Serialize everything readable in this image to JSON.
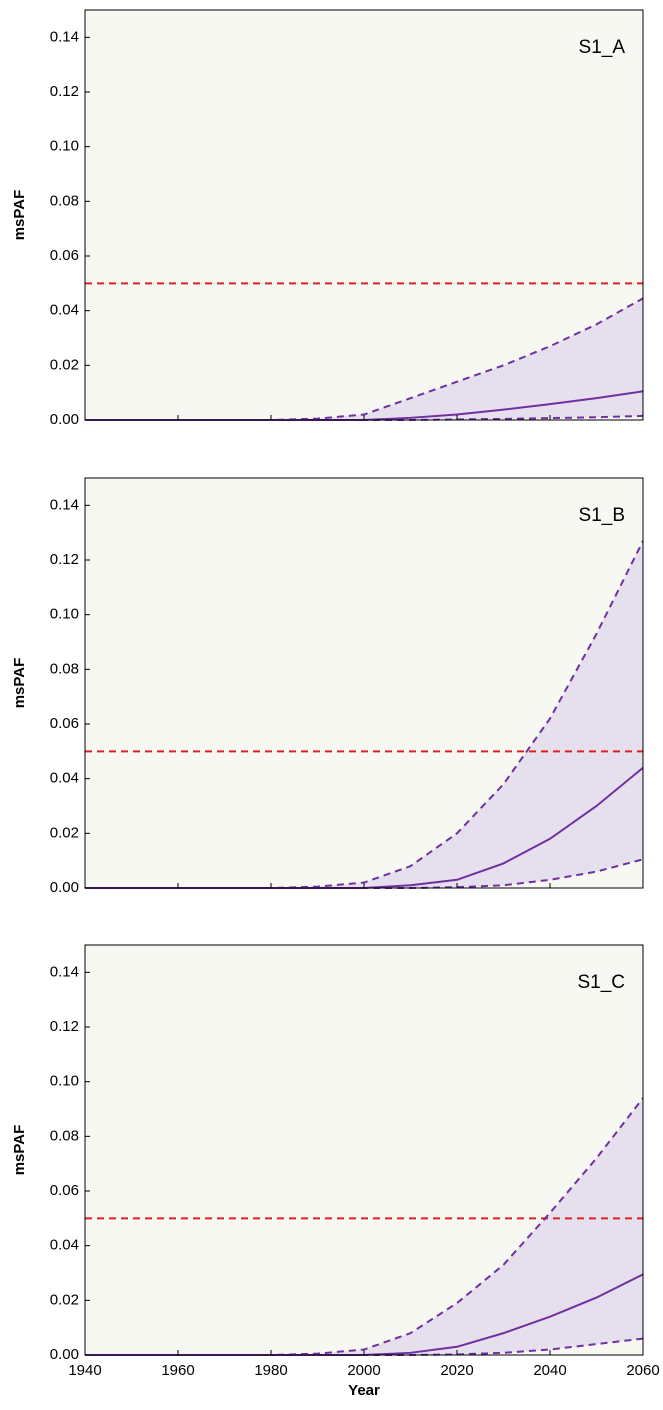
{
  "chart_data": [
    {
      "type": "line",
      "annotation": "S1_A",
      "ylabel": "msPAF",
      "x": [
        1940,
        1950,
        1960,
        1970,
        1980,
        1990,
        2000,
        2010,
        2020,
        2030,
        2040,
        2050,
        2060
      ],
      "series": [
        {
          "color": "#7030a0",
          "dash": false,
          "values": [
            0,
            0,
            0,
            0,
            0,
            0,
            0,
            0.0008,
            0.002,
            0.0038,
            0.0058,
            0.008,
            0.0105
          ]
        },
        {
          "color": "#7030a0",
          "dash": true,
          "values": [
            0,
            0,
            0,
            0,
            0,
            0.0005,
            0.002,
            0.008,
            0.014,
            0.02,
            0.027,
            0.035,
            0.0445
          ]
        },
        {
          "color": "#7030a0",
          "dash": true,
          "values": [
            0,
            0,
            0,
            0,
            0,
            0,
            0,
            0,
            0.0002,
            0.0004,
            0.0007,
            0.001,
            0.0015
          ]
        }
      ],
      "band_color": "#e6dfee",
      "background": "#f8f8f3",
      "hlines": [
        {
          "value": 0.05,
          "color": "#e02020"
        }
      ],
      "xlim": [
        1940,
        2060
      ],
      "xticks": [
        1940,
        1960,
        1980,
        2000,
        2020,
        2040,
        2060
      ],
      "ylim": [
        0,
        0.15
      ],
      "yticks": [
        {
          "value": 0,
          "label": "0.00"
        },
        0.02,
        0.04,
        0.06,
        0.08,
        {
          "value": 0.1,
          "label": "0.10"
        },
        0.12,
        0.14
      ]
    },
    {
      "type": "line",
      "annotation": "S1_B",
      "ylabel": "msPAF",
      "x": [
        1940,
        1950,
        1960,
        1970,
        1980,
        1990,
        2000,
        2010,
        2020,
        2030,
        2040,
        2050,
        2060
      ],
      "series": [
        {
          "color": "#7030a0",
          "dash": false,
          "values": [
            0,
            0,
            0,
            0,
            0,
            0,
            0,
            0.001,
            0.003,
            0.009,
            0.018,
            0.03,
            0.044
          ]
        },
        {
          "color": "#7030a0",
          "dash": true,
          "values": [
            0,
            0,
            0,
            0,
            0,
            0.0005,
            0.002,
            0.008,
            0.02,
            0.038,
            0.062,
            0.093,
            0.127
          ]
        },
        {
          "color": "#7030a0",
          "dash": true,
          "values": [
            0,
            0,
            0,
            0,
            0,
            0,
            0,
            0,
            0.0003,
            0.001,
            0.003,
            0.006,
            0.0105
          ]
        }
      ],
      "band_color": "#e6dfee",
      "background": "#f8f8f3",
      "hlines": [
        {
          "value": 0.05,
          "color": "#e02020"
        }
      ],
      "xlim": [
        1940,
        2060
      ],
      "xticks": [
        1940,
        1960,
        1980,
        2000,
        2020,
        2040,
        2060
      ],
      "ylim": [
        0,
        0.15
      ],
      "yticks": [
        {
          "value": 0,
          "label": "0.00"
        },
        0.02,
        0.04,
        0.06,
        0.08,
        {
          "value": 0.1,
          "label": "0.10"
        },
        0.12,
        0.14
      ]
    },
    {
      "type": "line",
      "annotation": "S1_C",
      "ylabel": "msPAF",
      "xlabel": "Year",
      "x": [
        1940,
        1950,
        1960,
        1970,
        1980,
        1990,
        2000,
        2010,
        2020,
        2030,
        2040,
        2050,
        2060
      ],
      "series": [
        {
          "color": "#7030a0",
          "dash": false,
          "values": [
            0,
            0,
            0,
            0,
            0,
            0,
            0,
            0.0008,
            0.003,
            0.008,
            0.014,
            0.021,
            0.0295
          ]
        },
        {
          "color": "#7030a0",
          "dash": true,
          "values": [
            0,
            0,
            0,
            0,
            0,
            0.0005,
            0.002,
            0.008,
            0.019,
            0.033,
            0.052,
            0.072,
            0.094
          ]
        },
        {
          "color": "#7030a0",
          "dash": true,
          "values": [
            0,
            0,
            0,
            0,
            0,
            0,
            0,
            0,
            0.0002,
            0.0008,
            0.002,
            0.004,
            0.006
          ]
        }
      ],
      "band_color": "#e6dfee",
      "background": "#f8f8f3",
      "hlines": [
        {
          "value": 0.05,
          "color": "#e02020"
        }
      ],
      "xlim": [
        1940,
        2060
      ],
      "xticks": [
        1940,
        1960,
        1980,
        2000,
        2020,
        2040,
        2060
      ],
      "ylim": [
        0,
        0.15
      ],
      "yticks": [
        {
          "value": 0,
          "label": "0.00"
        },
        0.02,
        0.04,
        0.06,
        0.08,
        {
          "value": 0.1,
          "label": "0.10"
        },
        0.12,
        0.14
      ]
    }
  ]
}
